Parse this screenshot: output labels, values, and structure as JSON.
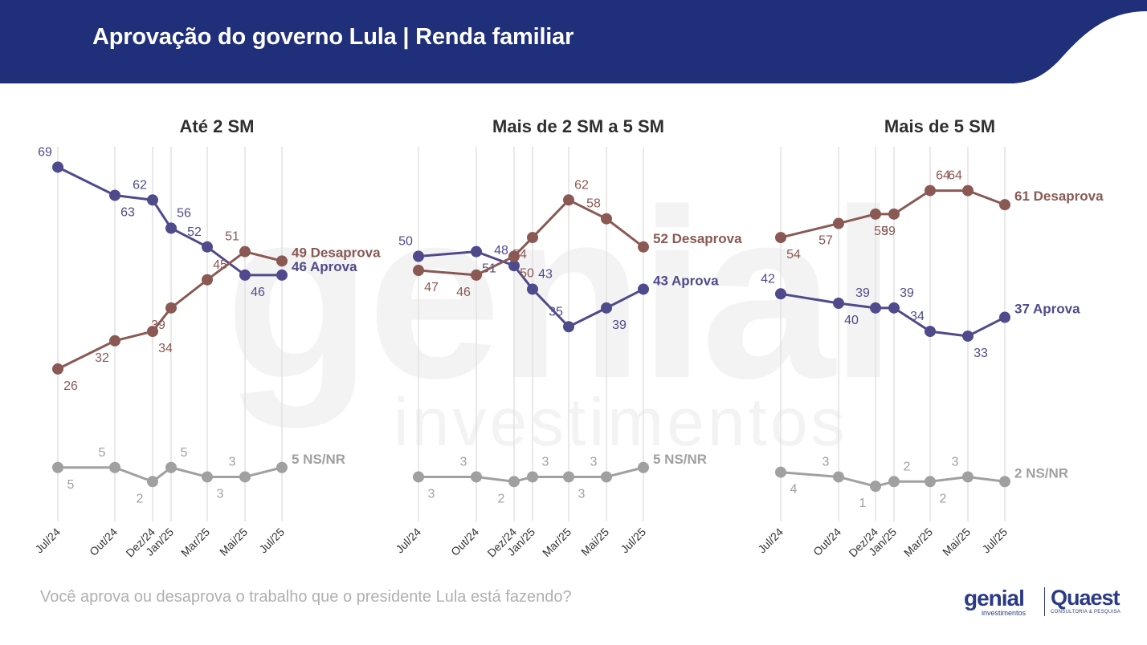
{
  "header": {
    "title": "Aprovação do governo Lula | Renda familiar"
  },
  "footer": {
    "question": "Você aprova ou desaprova o trabalho que o presidente Lula está fazendo?"
  },
  "logos": {
    "genial": "genial",
    "genial_sub": "investimentos",
    "quaest": "Quaest",
    "quaest_sub": "CONSULTORIA & PESQUISA"
  },
  "colors": {
    "banner": "#1f2f7a",
    "aprova": "#4f4a8c",
    "desaprova": "#8a5954",
    "nsnr": "#a0a0a0"
  },
  "chart_data": [
    {
      "type": "line",
      "title": "Até 2 SM",
      "x": [
        "Jul/24",
        "Out/24",
        "Dez/24",
        "Jan/25",
        "Mar/25",
        "Mai/25",
        "Jul/25"
      ],
      "series": [
        {
          "name": "Aprova",
          "end_label": "46 Aprova",
          "values": [
            69,
            63,
            62,
            56,
            52,
            46,
            46
          ],
          "labels": [
            "69",
            "63",
            "62",
            "56",
            "52",
            "46",
            ""
          ]
        },
        {
          "name": "Desaprova",
          "end_label": "49 Desaprova",
          "values": [
            26,
            32,
            34,
            39,
            45,
            51,
            49
          ],
          "labels": [
            "26",
            "32",
            "34",
            "39",
            "45",
            "51",
            ""
          ]
        },
        {
          "name": "NS/NR",
          "end_label": "5 NS/NR",
          "values": [
            5,
            5,
            2,
            5,
            3,
            3,
            5
          ],
          "labels": [
            "5",
            "5",
            "2",
            "5",
            "3",
            "3",
            ""
          ]
        }
      ]
    },
    {
      "type": "line",
      "title": "Mais de 2 SM a 5 SM",
      "x": [
        "Jul/24",
        "Out/24",
        "Dez/24",
        "Jan/25",
        "Mar/25",
        "Mai/25",
        "Jul/25"
      ],
      "series": [
        {
          "name": "Aprova",
          "end_label": "43 Aprova",
          "values": [
            50,
            51,
            48,
            43,
            35,
            39,
            43
          ],
          "labels": [
            "50",
            "51",
            "48",
            "43",
            "35",
            "39",
            ""
          ]
        },
        {
          "name": "Desaprova",
          "end_label": "52 Desaprova",
          "values": [
            47,
            46,
            50,
            54,
            62,
            58,
            52
          ],
          "labels": [
            "47",
            "46",
            "50",
            "54",
            "62",
            "58",
            ""
          ]
        },
        {
          "name": "NS/NR",
          "end_label": "5 NS/NR",
          "values": [
            3,
            3,
            2,
            3,
            3,
            3,
            5
          ],
          "labels": [
            "3",
            "3",
            "2",
            "3",
            "3",
            "3",
            ""
          ]
        }
      ]
    },
    {
      "type": "line",
      "title": "Mais de 5 SM",
      "x": [
        "Jul/24",
        "Out/24",
        "Dez/24",
        "Jan/25",
        "Mar/25",
        "Mai/25",
        "Jul/25"
      ],
      "series": [
        {
          "name": "Aprova",
          "end_label": "37 Aprova",
          "values": [
            42,
            40,
            39,
            39,
            34,
            33,
            37
          ],
          "labels": [
            "42",
            "40",
            "39",
            "39",
            "34",
            "33",
            ""
          ]
        },
        {
          "name": "Desaprova",
          "end_label": "61 Desaprova",
          "values": [
            54,
            57,
            59,
            59,
            64,
            64,
            61
          ],
          "labels": [
            "54",
            "57",
            "59",
            "59",
            "64",
            "64",
            ""
          ]
        },
        {
          "name": "NS/NR",
          "end_label": "2 NS/NR",
          "values": [
            4,
            3,
            1,
            2,
            2,
            3,
            2
          ],
          "labels": [
            "4",
            "3",
            "1",
            "2",
            "2",
            "3",
            ""
          ]
        }
      ]
    }
  ]
}
